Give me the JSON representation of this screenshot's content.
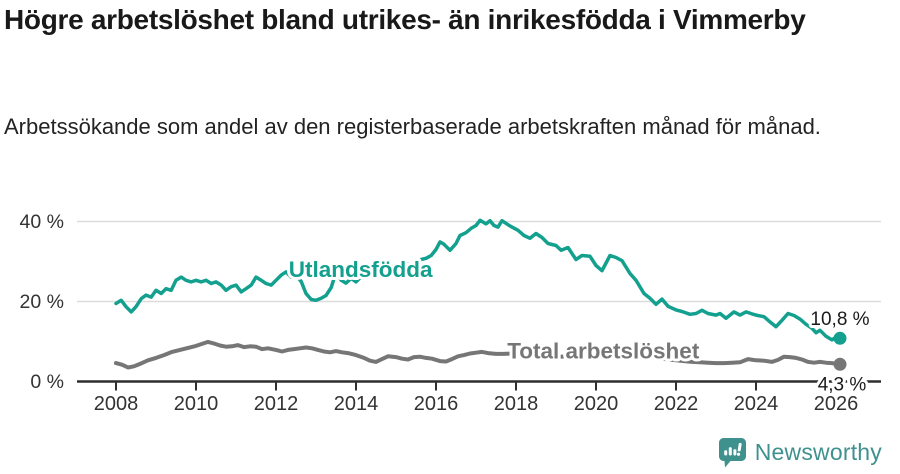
{
  "header": {
    "title": "Högre arbetslöshet bland utrikes- än inrikesfödda i Vimmerby",
    "subtitle": "Arbetssökande som andel av den registerbaserade arbetskraften månad för månad."
  },
  "footer": {
    "brand": "Newsworthy",
    "brand_color": "#3f918e",
    "icon": "newsworthy-speech-bubble-bar-chart-icon"
  },
  "chart_data": {
    "type": "line",
    "title": "Högre arbetslöshet bland utrikes- än inrikesfödda i Vimmerby",
    "xlabel": "",
    "ylabel": "",
    "grid": true,
    "legend_position": "inline-labels",
    "xlim": [
      2007.75,
      2027.1
    ],
    "ylim": [
      0,
      42
    ],
    "x_ticks": [
      2008,
      2010,
      2012,
      2014,
      2016,
      2018,
      2020,
      2022,
      2024,
      2026
    ],
    "y_ticks": [
      {
        "value": 0,
        "label": "0 %"
      },
      {
        "value": 20,
        "label": "20 %"
      },
      {
        "value": 40,
        "label": "40 %"
      }
    ],
    "colors": {
      "utlandsfodda": "#13a08e",
      "total": "#767676",
      "grid": "#dcdcdc",
      "axis": "#2e2e2e"
    },
    "series": [
      {
        "name": "Utlandsfödda",
        "color": "#13a08e",
        "end_label": "10,8 %",
        "end_value": 10.8,
        "label_at": [
          2012.32,
          26.1
        ],
        "points": [
          [
            2008.0,
            19.5
          ],
          [
            2008.13,
            20.3
          ],
          [
            2008.25,
            18.7
          ],
          [
            2008.38,
            17.4
          ],
          [
            2008.5,
            18.7
          ],
          [
            2008.63,
            20.7
          ],
          [
            2008.75,
            21.6
          ],
          [
            2008.88,
            21.1
          ],
          [
            2009.0,
            22.8
          ],
          [
            2009.13,
            22.0
          ],
          [
            2009.25,
            23.2
          ],
          [
            2009.38,
            22.8
          ],
          [
            2009.5,
            25.3
          ],
          [
            2009.63,
            26.1
          ],
          [
            2009.75,
            25.3
          ],
          [
            2009.88,
            24.9
          ],
          [
            2010.0,
            25.3
          ],
          [
            2010.13,
            24.9
          ],
          [
            2010.25,
            25.3
          ],
          [
            2010.38,
            24.5
          ],
          [
            2010.5,
            24.9
          ],
          [
            2010.63,
            24.1
          ],
          [
            2010.75,
            22.8
          ],
          [
            2010.88,
            23.7
          ],
          [
            2011.0,
            24.1
          ],
          [
            2011.13,
            22.4
          ],
          [
            2011.25,
            23.2
          ],
          [
            2011.38,
            24.1
          ],
          [
            2011.5,
            26.1
          ],
          [
            2011.63,
            25.3
          ],
          [
            2011.75,
            24.5
          ],
          [
            2011.88,
            24.1
          ],
          [
            2012.0,
            25.3
          ],
          [
            2012.13,
            26.6
          ],
          [
            2012.25,
            27.4
          ],
          [
            2012.38,
            26.1
          ],
          [
            2012.5,
            26.6
          ],
          [
            2012.63,
            25.0
          ],
          [
            2012.75,
            22.0
          ],
          [
            2012.88,
            20.5
          ],
          [
            2013.0,
            20.3
          ],
          [
            2013.13,
            20.8
          ],
          [
            2013.25,
            21.5
          ],
          [
            2013.38,
            23.5
          ],
          [
            2013.5,
            27.3
          ],
          [
            2013.63,
            25.3
          ],
          [
            2013.75,
            24.6
          ],
          [
            2013.88,
            25.8
          ],
          [
            2014.0,
            24.9
          ],
          [
            2014.13,
            26.2
          ],
          [
            2014.25,
            27.4
          ],
          [
            2014.38,
            27.1
          ],
          [
            2014.5,
            28.3
          ],
          [
            2014.63,
            28.0
          ],
          [
            2014.75,
            29.1
          ],
          [
            2014.88,
            28.5
          ],
          [
            2015.0,
            29.3
          ],
          [
            2015.13,
            28.8
          ],
          [
            2015.25,
            29.5
          ],
          [
            2015.38,
            29.0
          ],
          [
            2015.5,
            30.0
          ],
          [
            2015.63,
            30.5
          ],
          [
            2015.75,
            30.8
          ],
          [
            2015.88,
            31.5
          ],
          [
            2016.0,
            33.0
          ],
          [
            2016.1,
            34.9
          ],
          [
            2016.2,
            34.3
          ],
          [
            2016.35,
            32.8
          ],
          [
            2016.5,
            34.5
          ],
          [
            2016.6,
            36.5
          ],
          [
            2016.75,
            37.2
          ],
          [
            2016.88,
            38.3
          ],
          [
            2017.0,
            39.0
          ],
          [
            2017.1,
            40.3
          ],
          [
            2017.25,
            39.4
          ],
          [
            2017.35,
            40.2
          ],
          [
            2017.45,
            39.0
          ],
          [
            2017.55,
            38.6
          ],
          [
            2017.65,
            40.2
          ],
          [
            2017.8,
            39.2
          ],
          [
            2017.9,
            38.6
          ],
          [
            2018.05,
            37.8
          ],
          [
            2018.2,
            36.5
          ],
          [
            2018.35,
            35.8
          ],
          [
            2018.5,
            37.0
          ],
          [
            2018.65,
            36.0
          ],
          [
            2018.8,
            34.5
          ],
          [
            2019.0,
            34.0
          ],
          [
            2019.13,
            32.8
          ],
          [
            2019.3,
            33.5
          ],
          [
            2019.5,
            30.5
          ],
          [
            2019.65,
            31.5
          ],
          [
            2019.85,
            31.3
          ],
          [
            2020.0,
            29.0
          ],
          [
            2020.15,
            27.7
          ],
          [
            2020.35,
            31.5
          ],
          [
            2020.5,
            31.0
          ],
          [
            2020.65,
            30.2
          ],
          [
            2020.85,
            27.0
          ],
          [
            2021.0,
            25.3
          ],
          [
            2021.2,
            22.0
          ],
          [
            2021.35,
            20.8
          ],
          [
            2021.5,
            19.3
          ],
          [
            2021.65,
            20.6
          ],
          [
            2021.8,
            18.8
          ],
          [
            2022.0,
            17.9
          ],
          [
            2022.15,
            17.5
          ],
          [
            2022.35,
            16.8
          ],
          [
            2022.5,
            17.0
          ],
          [
            2022.65,
            17.8
          ],
          [
            2022.8,
            17.0
          ],
          [
            2023.0,
            16.6
          ],
          [
            2023.1,
            17.0
          ],
          [
            2023.25,
            15.8
          ],
          [
            2023.45,
            17.4
          ],
          [
            2023.6,
            16.6
          ],
          [
            2023.75,
            17.4
          ],
          [
            2023.9,
            16.9
          ],
          [
            2024.0,
            16.6
          ],
          [
            2024.2,
            16.2
          ],
          [
            2024.35,
            14.9
          ],
          [
            2024.5,
            13.7
          ],
          [
            2024.65,
            15.3
          ],
          [
            2024.8,
            17.0
          ],
          [
            2024.95,
            16.5
          ],
          [
            2025.1,
            15.6
          ],
          [
            2025.25,
            14.3
          ],
          [
            2025.4,
            13.3
          ],
          [
            2025.5,
            12.2
          ],
          [
            2025.6,
            12.8
          ],
          [
            2025.75,
            11.3
          ],
          [
            2025.9,
            10.4
          ],
          [
            2026.0,
            11.1
          ],
          [
            2026.1,
            10.8
          ]
        ]
      },
      {
        "name": "Total arbetslöshet",
        "color": "#767676",
        "end_label": "4,3 %",
        "end_value": 4.3,
        "label_at": [
          2017.78,
          5.8
        ],
        "points": [
          [
            2008.0,
            4.6
          ],
          [
            2008.15,
            4.2
          ],
          [
            2008.3,
            3.5
          ],
          [
            2008.45,
            3.8
          ],
          [
            2008.6,
            4.4
          ],
          [
            2008.8,
            5.3
          ],
          [
            2009.0,
            5.9
          ],
          [
            2009.2,
            6.6
          ],
          [
            2009.4,
            7.4
          ],
          [
            2009.6,
            7.9
          ],
          [
            2009.8,
            8.4
          ],
          [
            2010.0,
            8.9
          ],
          [
            2010.15,
            9.4
          ],
          [
            2010.3,
            9.9
          ],
          [
            2010.45,
            9.5
          ],
          [
            2010.6,
            9.0
          ],
          [
            2010.75,
            8.7
          ],
          [
            2010.9,
            8.8
          ],
          [
            2011.05,
            9.1
          ],
          [
            2011.2,
            8.6
          ],
          [
            2011.35,
            8.8
          ],
          [
            2011.5,
            8.7
          ],
          [
            2011.65,
            8.1
          ],
          [
            2011.8,
            8.3
          ],
          [
            2012.0,
            7.9
          ],
          [
            2012.15,
            7.5
          ],
          [
            2012.3,
            7.9
          ],
          [
            2012.45,
            8.1
          ],
          [
            2012.6,
            8.3
          ],
          [
            2012.75,
            8.5
          ],
          [
            2012.9,
            8.3
          ],
          [
            2013.05,
            7.9
          ],
          [
            2013.2,
            7.5
          ],
          [
            2013.35,
            7.3
          ],
          [
            2013.5,
            7.6
          ],
          [
            2013.65,
            7.3
          ],
          [
            2013.8,
            7.1
          ],
          [
            2014.0,
            6.6
          ],
          [
            2014.2,
            5.9
          ],
          [
            2014.35,
            5.2
          ],
          [
            2014.5,
            4.9
          ],
          [
            2014.65,
            5.6
          ],
          [
            2014.8,
            6.3
          ],
          [
            2015.0,
            6.1
          ],
          [
            2015.15,
            5.7
          ],
          [
            2015.3,
            5.5
          ],
          [
            2015.45,
            6.1
          ],
          [
            2015.6,
            6.2
          ],
          [
            2015.75,
            5.9
          ],
          [
            2015.9,
            5.7
          ],
          [
            2016.1,
            5.1
          ],
          [
            2016.25,
            5.0
          ],
          [
            2016.4,
            5.6
          ],
          [
            2016.55,
            6.3
          ],
          [
            2016.7,
            6.6
          ],
          [
            2016.85,
            7.0
          ],
          [
            2017.0,
            7.2
          ],
          [
            2017.15,
            7.4
          ],
          [
            2017.3,
            7.1
          ],
          [
            2017.5,
            6.9
          ],
          [
            2017.7,
            6.9
          ],
          [
            2017.9,
            7.0
          ],
          [
            2018.1,
            6.9
          ],
          [
            2018.3,
            6.7
          ],
          [
            2018.5,
            6.6
          ],
          [
            2018.7,
            6.5
          ],
          [
            2018.9,
            6.3
          ],
          [
            2019.1,
            6.2
          ],
          [
            2019.3,
            6.3
          ],
          [
            2019.5,
            6.4
          ],
          [
            2019.7,
            6.3
          ],
          [
            2019.9,
            6.1
          ],
          [
            2020.1,
            6.3
          ],
          [
            2020.3,
            7.2
          ],
          [
            2020.45,
            7.7
          ],
          [
            2020.6,
            7.8
          ],
          [
            2020.8,
            7.5
          ],
          [
            2021.0,
            7.0
          ],
          [
            2021.2,
            6.6
          ],
          [
            2021.4,
            6.2
          ],
          [
            2021.6,
            5.8
          ],
          [
            2021.8,
            5.5
          ],
          [
            2022.0,
            5.3
          ],
          [
            2022.2,
            5.1
          ],
          [
            2022.4,
            4.9
          ],
          [
            2022.6,
            4.8
          ],
          [
            2022.8,
            4.7
          ],
          [
            2023.0,
            4.6
          ],
          [
            2023.2,
            4.6
          ],
          [
            2023.4,
            4.7
          ],
          [
            2023.6,
            4.8
          ],
          [
            2023.8,
            5.6
          ],
          [
            2024.0,
            5.3
          ],
          [
            2024.2,
            5.2
          ],
          [
            2024.4,
            4.9
          ],
          [
            2024.55,
            5.4
          ],
          [
            2024.7,
            6.2
          ],
          [
            2024.85,
            6.1
          ],
          [
            2025.0,
            5.9
          ],
          [
            2025.15,
            5.5
          ],
          [
            2025.3,
            4.9
          ],
          [
            2025.45,
            4.7
          ],
          [
            2025.6,
            4.9
          ],
          [
            2025.75,
            4.7
          ],
          [
            2025.9,
            4.6
          ],
          [
            2026.1,
            4.3
          ]
        ]
      }
    ]
  }
}
